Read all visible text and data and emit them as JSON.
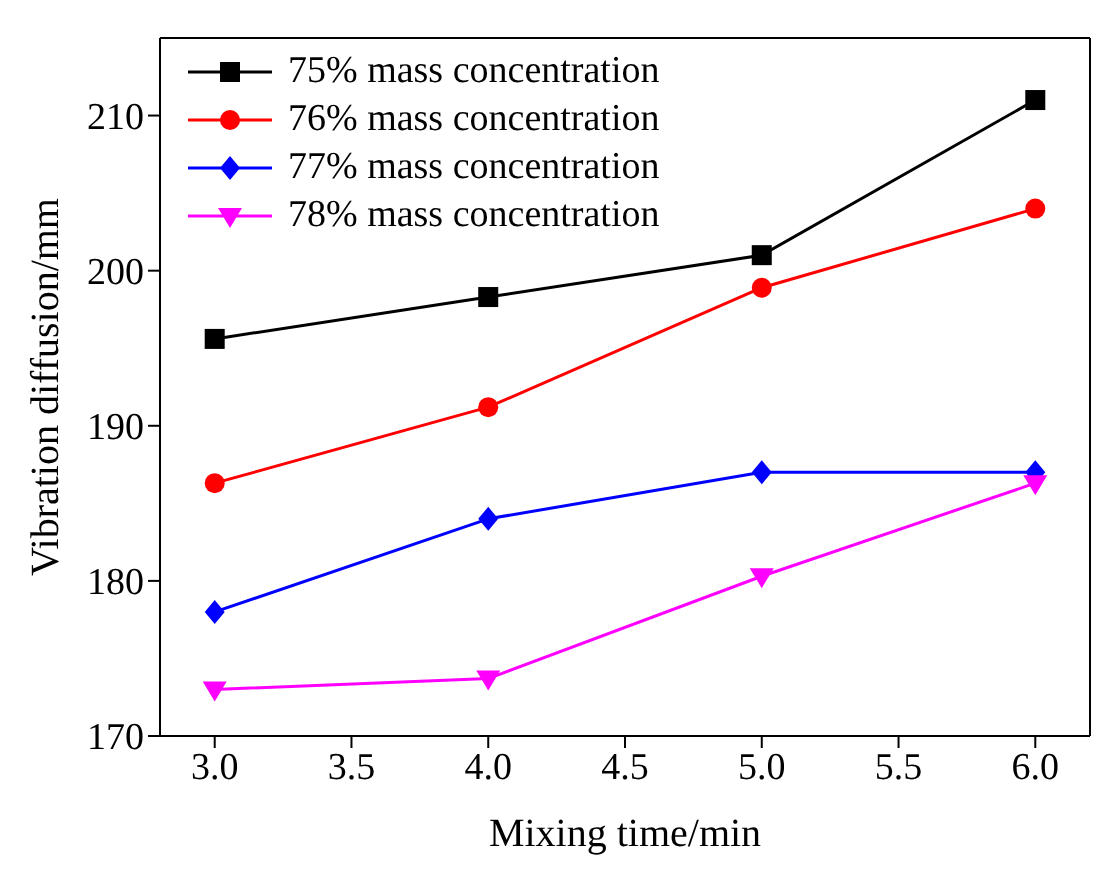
{
  "chart_data": {
    "type": "line",
    "xlabel": "Mixing time/min",
    "ylabel": "Vibration diffusion/mm",
    "x": [
      3.0,
      4.0,
      5.0,
      6.0
    ],
    "xlim": [
      2.8,
      6.2
    ],
    "xticks": [
      {
        "value": 3,
        "label": "3.0"
      },
      {
        "value": 3.5,
        "label": "3.5"
      },
      {
        "value": 4,
        "label": "4.0"
      },
      {
        "value": 4.5,
        "label": "4.5"
      },
      {
        "value": 5,
        "label": "5.0"
      },
      {
        "value": 5.5,
        "label": "5.5"
      },
      {
        "value": 6,
        "label": "6.0"
      }
    ],
    "ylim": [
      170,
      215
    ],
    "yticks": [
      170,
      180,
      190,
      200,
      210
    ],
    "grid": false,
    "legend": "top left",
    "line_style": "solid",
    "series": [
      {
        "name": "75% mass concentration",
        "color": "#000000",
        "marker": "square",
        "values": [
          195.6,
          198.3,
          201.0,
          211.0
        ]
      },
      {
        "name": "76% mass concentration",
        "color": "#ff0000",
        "marker": "circle",
        "values": [
          186.3,
          191.2,
          198.9,
          204.0
        ]
      },
      {
        "name": "77% mass concentration",
        "color": "#0000ff",
        "marker": "diamond",
        "values": [
          178.0,
          184.0,
          187.0,
          187.0
        ]
      },
      {
        "name": "78% mass concentration",
        "color": "#ff00ff",
        "marker": "triangle-down",
        "values": [
          173.0,
          173.7,
          180.3,
          186.3
        ]
      }
    ]
  }
}
